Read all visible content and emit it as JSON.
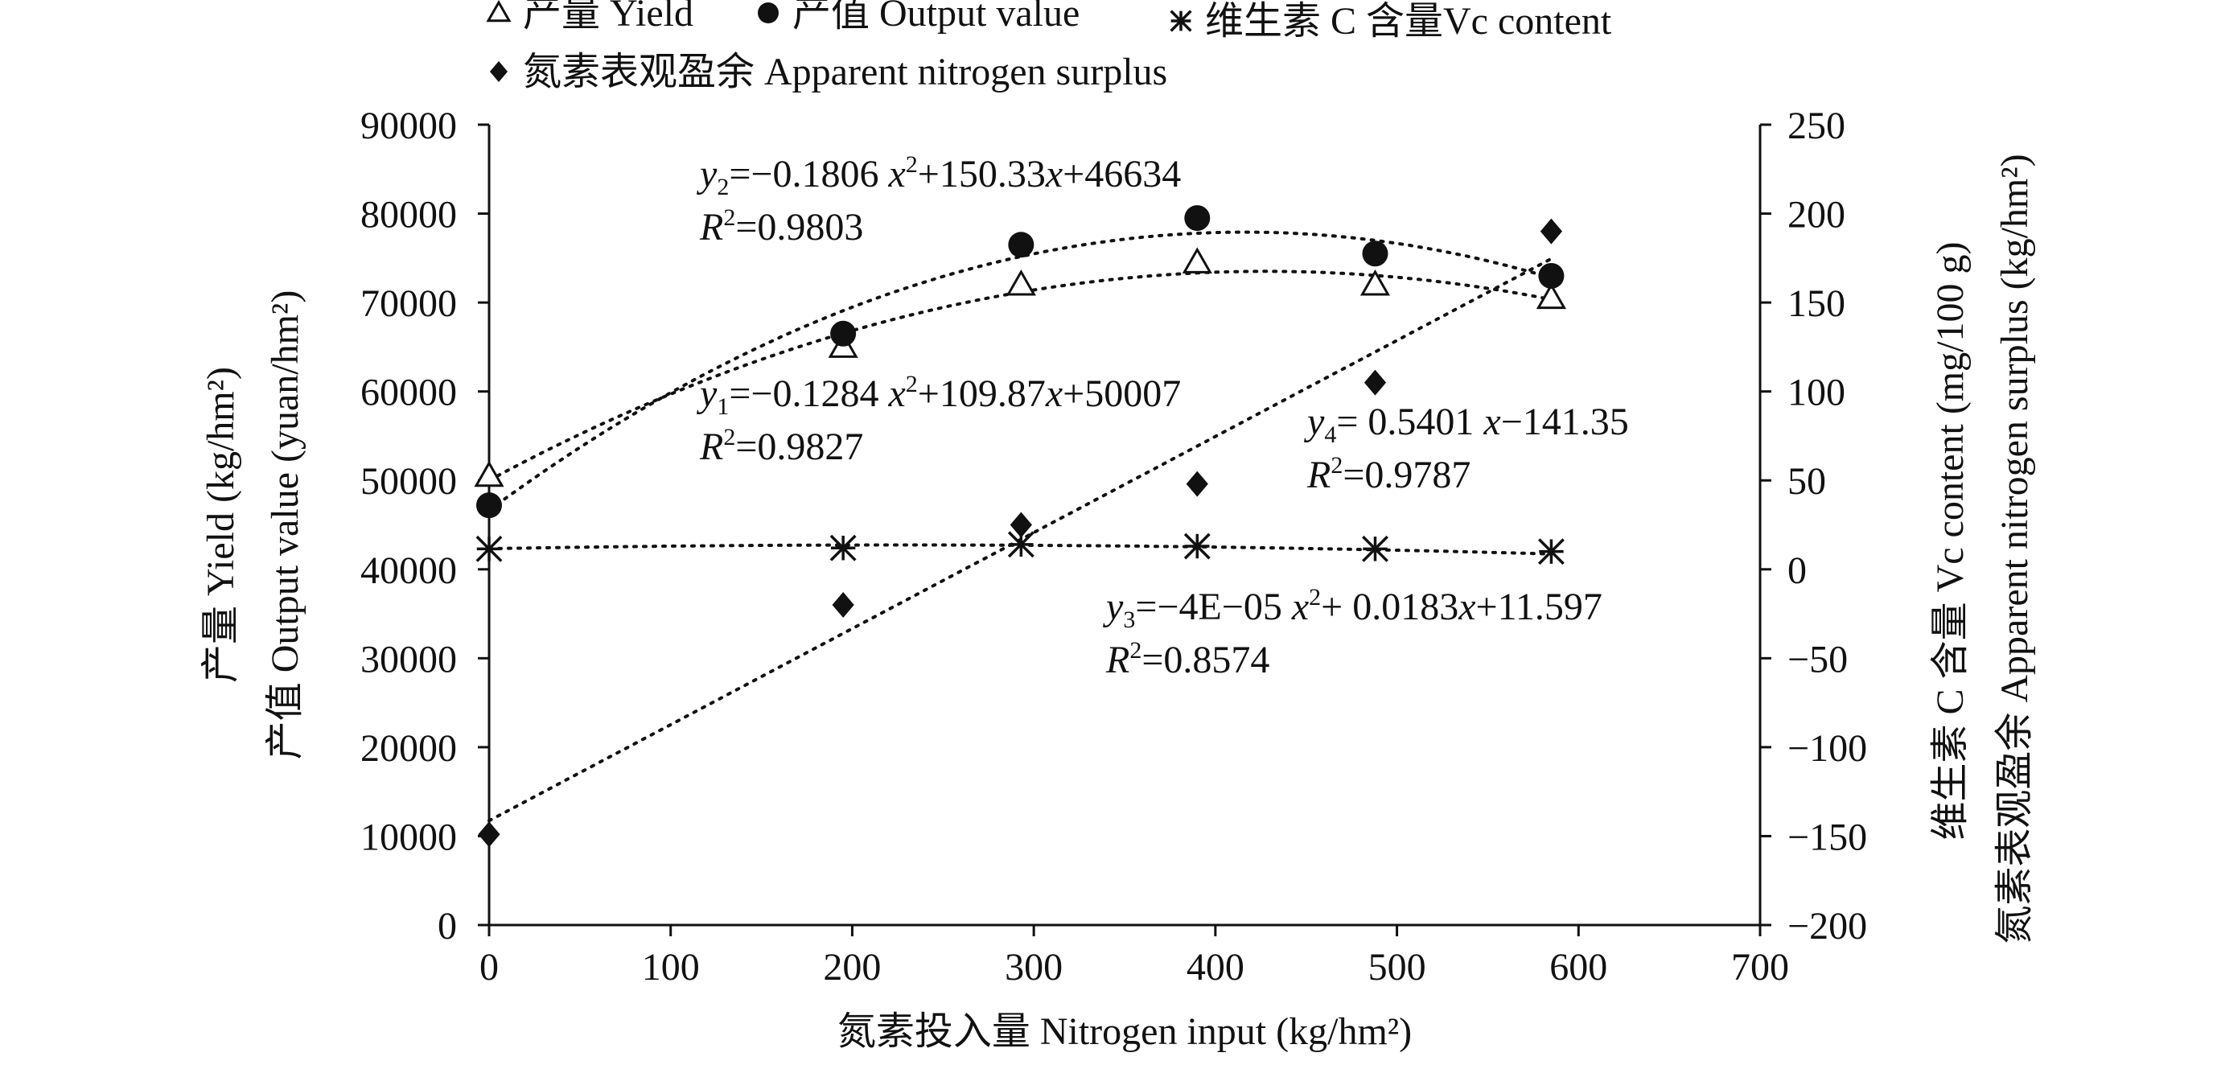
{
  "chart_data": {
    "type": "scatter",
    "x_axis": {
      "label": "氮素投入量 Nitrogen input (kg/hm²)",
      "range": [
        0,
        700
      ],
      "ticks": [
        0,
        100,
        200,
        300,
        400,
        500,
        600,
        700
      ]
    },
    "y_left": {
      "label_line1": "产量 Yield (kg/hm²)",
      "label_line2": "产值 Output value (yuan/hm²)",
      "range": [
        0,
        90000
      ],
      "ticks": [
        0,
        10000,
        20000,
        30000,
        40000,
        50000,
        60000,
        70000,
        80000,
        90000
      ]
    },
    "y_right": {
      "label_line1": "维生素 C 含量 Vc content (mg/100 g)",
      "label_line2": "氮素表观盈余 Apparent nitrogen surplus (kg/hm²)",
      "range": [
        -200,
        250
      ],
      "ticks": [
        -200,
        -150,
        -100,
        -50,
        0,
        50,
        100,
        150,
        200,
        250
      ]
    },
    "x": [
      0,
      195,
      293,
      390,
      488,
      585
    ],
    "series": [
      {
        "name": "产量 Yield",
        "axis": "left",
        "marker": "triangle-open",
        "values": [
          50500,
          65000,
          72000,
          74500,
          72000,
          70500
        ],
        "trend": {
          "kind": "poly2",
          "coef": [
            -0.1284,
            109.87,
            50007
          ]
        }
      },
      {
        "name": "产值 Output value",
        "axis": "left",
        "marker": "circle",
        "values": [
          47200,
          66500,
          76500,
          79500,
          75500,
          73000
        ],
        "trend": {
          "kind": "poly2",
          "coef": [
            -0.1806,
            150.33,
            46634
          ]
        }
      },
      {
        "name": "维生素 C 含量Vc content",
        "axis": "right",
        "marker": "asterisk",
        "values": [
          11.5,
          12,
          14,
          13,
          11.5,
          10
        ],
        "trend": {
          "kind": "poly2",
          "coef": [
            -4e-05,
            0.0183,
            11.597
          ]
        }
      },
      {
        "name": "氮素表观盈余 Apparent nitrogen surplus",
        "axis": "right",
        "marker": "diamond",
        "values": [
          -149,
          -20,
          25,
          48,
          105,
          190
        ],
        "trend": {
          "kind": "linear",
          "coef": [
            0.5401,
            -141.35
          ]
        }
      }
    ],
    "equations": [
      {
        "var": "y",
        "sub": "2",
        "body": "=−0.1806 ",
        "x2": "x",
        "rest": "+150.33",
        "xv": "x",
        "tail": "+46634",
        "r2": "=0.9803"
      },
      {
        "var": "y",
        "sub": "1",
        "body": "=−0.1284 ",
        "x2": "x",
        "rest": "+109.87",
        "xv": "x",
        "tail": "+50007",
        "r2": "=0.9827"
      },
      {
        "var": "y",
        "sub": "4",
        "body": "= 0.5401 ",
        "x2": "",
        "rest": "",
        "xv": "x",
        "tail": "−141.35",
        "r2": "=0.9787"
      },
      {
        "var": "y",
        "sub": "3",
        "body": "=−4E−05 ",
        "x2": "x",
        "rest": "+ 0.0183",
        "xv": "x",
        "tail": "+11.597",
        "r2": "=0.8574"
      }
    ],
    "legend": {
      "placement": "top-left",
      "rows": [
        [
          0,
          1,
          2
        ],
        [
          3
        ]
      ]
    },
    "grid": false
  }
}
